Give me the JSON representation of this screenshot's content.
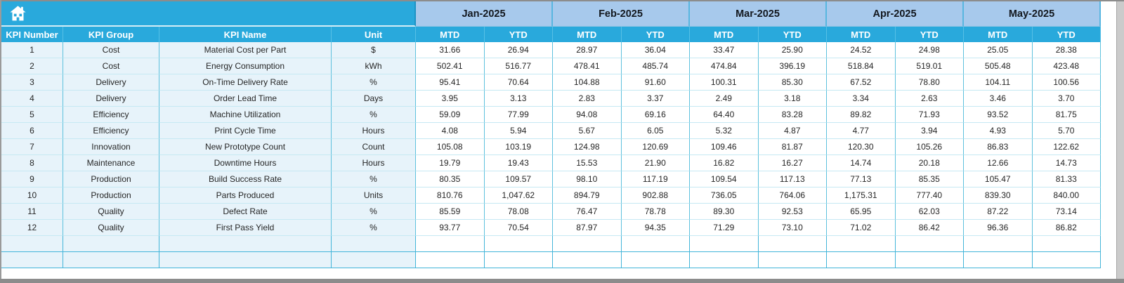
{
  "icons": {
    "corner": "home-icon"
  },
  "colors": {
    "header_cyan": "#29a9dc",
    "month_blue": "#a7c9ec",
    "row_tint": "#e7f3fa",
    "grid_teal": "#5ec1dd",
    "window_gray": "#8c8c8c",
    "text_dark": "#262626"
  },
  "table": {
    "left_headers": [
      "KPI Number",
      "KPI Group",
      "KPI Name",
      "Unit"
    ],
    "months": [
      "Jan-2025",
      "Feb-2025",
      "Mar-2025",
      "Apr-2025",
      "May-2025"
    ],
    "period_headers": [
      "MTD",
      "YTD"
    ],
    "empty_rows": 2,
    "rows": [
      {
        "number": "1",
        "group": "Cost",
        "name": "Material Cost per Part",
        "unit": "$",
        "values": [
          "31.66",
          "26.94",
          "28.97",
          "36.04",
          "33.47",
          "25.90",
          "24.52",
          "24.98",
          "25.05",
          "28.38"
        ]
      },
      {
        "number": "2",
        "group": "Cost",
        "name": "Energy Consumption",
        "unit": "kWh",
        "values": [
          "502.41",
          "516.77",
          "478.41",
          "485.74",
          "474.84",
          "396.19",
          "518.84",
          "519.01",
          "505.48",
          "423.48"
        ]
      },
      {
        "number": "3",
        "group": "Delivery",
        "name": "On-Time Delivery Rate",
        "unit": "%",
        "values": [
          "95.41",
          "70.64",
          "104.88",
          "91.60",
          "100.31",
          "85.30",
          "67.52",
          "78.80",
          "104.11",
          "100.56"
        ]
      },
      {
        "number": "4",
        "group": "Delivery",
        "name": "Order Lead Time",
        "unit": "Days",
        "values": [
          "3.95",
          "3.13",
          "2.83",
          "3.37",
          "2.49",
          "3.18",
          "3.34",
          "2.63",
          "3.46",
          "3.70"
        ]
      },
      {
        "number": "5",
        "group": "Efficiency",
        "name": "Machine Utilization",
        "unit": "%",
        "values": [
          "59.09",
          "77.99",
          "94.08",
          "69.16",
          "64.40",
          "83.28",
          "89.82",
          "71.93",
          "93.52",
          "81.75"
        ]
      },
      {
        "number": "6",
        "group": "Efficiency",
        "name": "Print Cycle Time",
        "unit": "Hours",
        "values": [
          "4.08",
          "5.94",
          "5.67",
          "6.05",
          "5.32",
          "4.87",
          "4.77",
          "3.94",
          "4.93",
          "5.70"
        ]
      },
      {
        "number": "7",
        "group": "Innovation",
        "name": "New Prototype Count",
        "unit": "Count",
        "values": [
          "105.08",
          "103.19",
          "124.98",
          "120.69",
          "109.46",
          "81.87",
          "120.30",
          "105.26",
          "86.83",
          "122.62"
        ]
      },
      {
        "number": "8",
        "group": "Maintenance",
        "name": "Downtime Hours",
        "unit": "Hours",
        "values": [
          "19.79",
          "19.43",
          "15.53",
          "21.90",
          "16.82",
          "16.27",
          "14.74",
          "20.18",
          "12.66",
          "14.73"
        ]
      },
      {
        "number": "9",
        "group": "Production",
        "name": "Build Success Rate",
        "unit": "%",
        "values": [
          "80.35",
          "109.57",
          "98.10",
          "117.19",
          "109.54",
          "117.13",
          "77.13",
          "85.35",
          "105.47",
          "81.33"
        ]
      },
      {
        "number": "10",
        "group": "Production",
        "name": "Parts Produced",
        "unit": "Units",
        "values": [
          "810.76",
          "1,047.62",
          "894.79",
          "902.88",
          "736.05",
          "764.06",
          "1,175.31",
          "777.40",
          "839.30",
          "840.00"
        ]
      },
      {
        "number": "11",
        "group": "Quality",
        "name": "Defect Rate",
        "unit": "%",
        "values": [
          "85.59",
          "78.08",
          "76.47",
          "78.78",
          "89.30",
          "92.53",
          "65.95",
          "62.03",
          "87.22",
          "73.14"
        ]
      },
      {
        "number": "12",
        "group": "Quality",
        "name": "First Pass Yield",
        "unit": "%",
        "values": [
          "93.77",
          "70.54",
          "87.97",
          "94.35",
          "71.29",
          "73.10",
          "71.02",
          "86.42",
          "96.36",
          "86.82"
        ]
      }
    ]
  }
}
